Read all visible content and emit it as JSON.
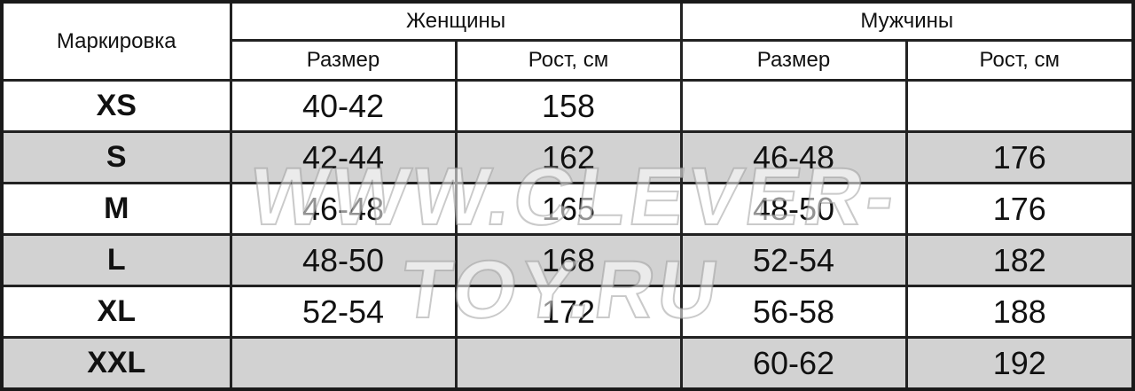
{
  "header": {
    "marking": "Маркировка",
    "women": "Женщины",
    "men": "Мужчины",
    "size": "Размер",
    "height_cm": "Рост, см"
  },
  "rows": [
    {
      "mark": "XS",
      "women_size": "40-42",
      "women_height": "158",
      "men_size": "",
      "men_height": ""
    },
    {
      "mark": "S",
      "women_size": "42-44",
      "women_height": "162",
      "men_size": "46-48",
      "men_height": "176"
    },
    {
      "mark": "M",
      "women_size": "46-48",
      "women_height": "165",
      "men_size": "48-50",
      "men_height": "176"
    },
    {
      "mark": "L",
      "women_size": "48-50",
      "women_height": "168",
      "men_size": "52-54",
      "men_height": "182"
    },
    {
      "mark": "XL",
      "women_size": "52-54",
      "women_height": "172",
      "men_size": "56-58",
      "men_height": "188"
    },
    {
      "mark": "XXL",
      "women_size": "",
      "women_height": "",
      "men_size": "60-62",
      "men_height": "192"
    }
  ],
  "watermark": "WWW.CLEVER-TOY.RU",
  "colors": {
    "shaded_row": "#d2d2d2",
    "border": "#222222"
  }
}
